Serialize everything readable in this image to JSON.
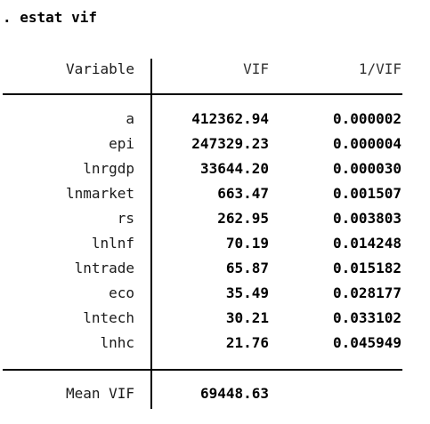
{
  "command": ". estat vif",
  "headers": {
    "variable": "Variable",
    "vif": "VIF",
    "inv_vif": "1/VIF"
  },
  "rows": [
    {
      "variable": "a",
      "vif": "412362.94",
      "inv_vif": "0.000002"
    },
    {
      "variable": "epi",
      "vif": "247329.23",
      "inv_vif": "0.000004"
    },
    {
      "variable": "lnrgdp",
      "vif": "33644.20",
      "inv_vif": "0.000030"
    },
    {
      "variable": "lnmarket",
      "vif": "663.47",
      "inv_vif": "0.001507"
    },
    {
      "variable": "rs",
      "vif": "262.95",
      "inv_vif": "0.003803"
    },
    {
      "variable": "lnlnf",
      "vif": "70.19",
      "inv_vif": "0.014248"
    },
    {
      "variable": "lntrade",
      "vif": "65.87",
      "inv_vif": "0.015182"
    },
    {
      "variable": "eco",
      "vif": "35.49",
      "inv_vif": "0.028177"
    },
    {
      "variable": "lntech",
      "vif": "30.21",
      "inv_vif": "0.033102"
    },
    {
      "variable": "lnhc",
      "vif": "21.76",
      "inv_vif": "0.045949"
    }
  ],
  "footer": {
    "label": "Mean VIF",
    "value": "69448.63"
  }
}
